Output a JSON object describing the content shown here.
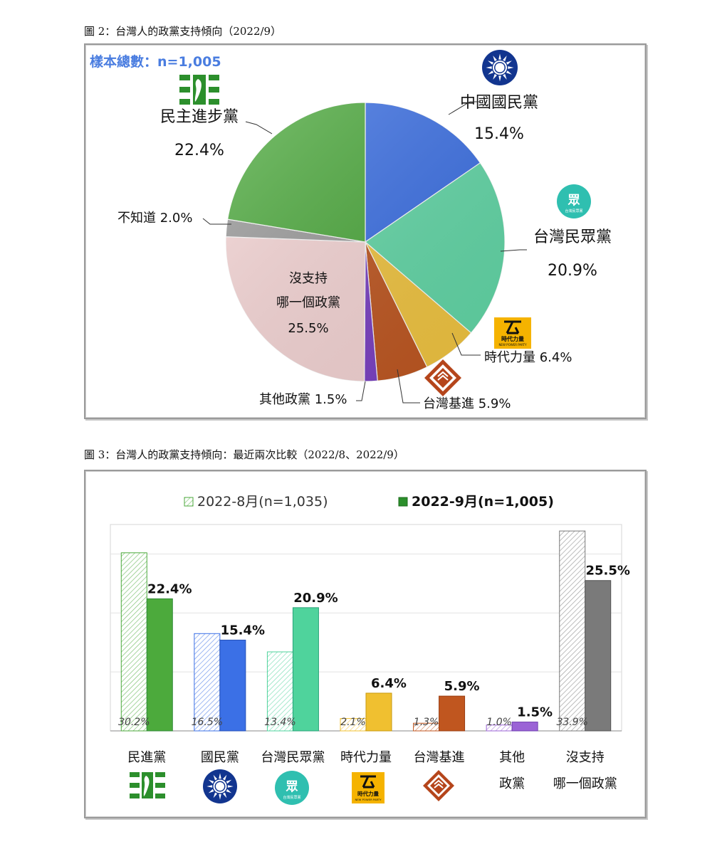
{
  "figure2": {
    "caption": "圖 2：台灣人的政黨支持傾向（2022/9）",
    "sample_label": "樣本總數：n=1,005"
  },
  "figure3": {
    "caption": "圖 3：台灣人的政黨支持傾向：最近兩次比較（2022/8、2022/9）"
  },
  "logos": {
    "dpp": "dpp-logo-icon",
    "kmt": "kmt-sun-logo-icon",
    "tpp": "tpp-logo-icon",
    "npp": "npp-logo-icon",
    "tsp": "tsp-logo-icon"
  },
  "logo_text": {
    "tpp_char": "眾",
    "tpp_sub": "台灣民眾黨",
    "npp_text": "時代力量",
    "npp_sub": "NEW POWER PARTY"
  },
  "chart_data": [
    {
      "type": "pie",
      "slices": [
        {
          "label": "中國國民黨",
          "value": 15.4,
          "value_label": "15.4%",
          "color": "#3b70e6"
        },
        {
          "label": "台灣民眾黨",
          "value": 20.9,
          "value_label": "20.9%",
          "color": "#62d9a8"
        },
        {
          "label": "時代力量",
          "value": 6.4,
          "value_label": "6.4%",
          "color": "#f3c640"
        },
        {
          "label": "台灣基進",
          "value": 5.9,
          "value_label": "5.9%",
          "color": "#c0561f"
        },
        {
          "label": "其他政黨",
          "value": 1.5,
          "value_label": "1.5%",
          "color": "#7a3fc4"
        },
        {
          "label": "沒支持哪一個政黨",
          "label_lines": [
            "沒支持",
            "哪一個政黨"
          ],
          "value": 25.5,
          "value_label": "25.5%",
          "color": "#f7d6d6"
        },
        {
          "label": "不知道",
          "value": 2.0,
          "value_label": "2.0%",
          "color": "#9b9b9b"
        },
        {
          "label": "民主進步黨",
          "value": 22.4,
          "value_label": "22.4%",
          "color": "#4caa3c"
        }
      ]
    },
    {
      "type": "bar",
      "legend": [
        "2022-8月(n=1,035)",
        "2022-9月(n=1,005)"
      ],
      "ylim": [
        0,
        35
      ],
      "categories": [
        {
          "lines": [
            "民進黨"
          ],
          "logo": "dpp"
        },
        {
          "lines": [
            "國民黨"
          ],
          "logo": "kmt"
        },
        {
          "lines": [
            "台灣民眾黨"
          ],
          "logo": "tpp"
        },
        {
          "lines": [
            "時代力量"
          ],
          "logo": "npp"
        },
        {
          "lines": [
            "台灣基進"
          ],
          "logo": "tsp"
        },
        {
          "lines": [
            "其他",
            "政黨"
          ],
          "logo": ""
        },
        {
          "lines": [
            "沒支持",
            "哪一個政黨"
          ],
          "logo": ""
        }
      ],
      "colors": [
        "#4caa3c",
        "#3b70e6",
        "#4fd39c",
        "#f0c030",
        "#c0561f",
        "#9b63d6",
        "#7a7a7a"
      ],
      "series": [
        {
          "name": "2022-8月(n=1,035)",
          "values": [
            30.2,
            16.5,
            13.4,
            2.1,
            1.3,
            1.0,
            33.9
          ],
          "labels": [
            "30.2%",
            "16.5%",
            "13.4%",
            "2.1%",
            "1.3%",
            "1.0%",
            "33.9%"
          ]
        },
        {
          "name": "2022-9月(n=1,005)",
          "values": [
            22.4,
            15.4,
            20.9,
            6.4,
            5.9,
            1.5,
            25.5
          ],
          "labels": [
            "22.4%",
            "15.4%",
            "20.9%",
            "6.4%",
            "5.9%",
            "1.5%",
            "25.5%"
          ]
        }
      ]
    }
  ]
}
